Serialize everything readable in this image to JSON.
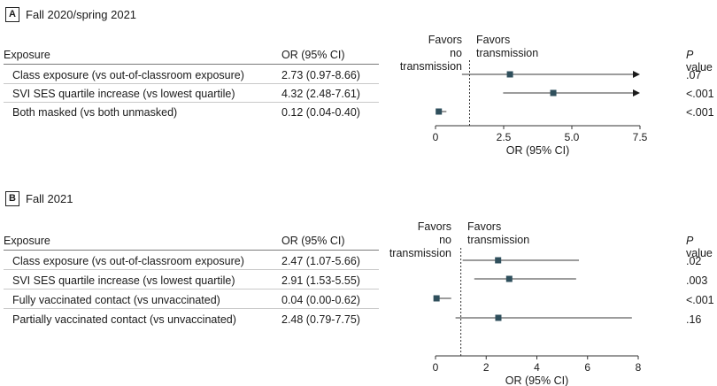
{
  "chart_data": [
    {
      "type": "forest",
      "panel_label": "A",
      "title": "Fall 2020/spring 2021",
      "columns": {
        "exposure": "Exposure",
        "or": "OR (95% CI)",
        "p_prefix": "P",
        "p_suffix": " value"
      },
      "favors_left": [
        "Favors",
        "no transmission"
      ],
      "favors_right": [
        "Favors",
        "transmission"
      ],
      "xlabel": "OR (95% CI)",
      "xlim": [
        0,
        7.5
      ],
      "xticks": [
        0,
        2.5,
        5.0,
        7.5
      ],
      "xtick_labels": [
        "0",
        "2.5",
        "5.0",
        "7.5"
      ],
      "reference_line": 1.25,
      "rows": [
        {
          "exposure": "Class exposure (vs out-of-classroom exposure)",
          "or_text": "2.73 (0.97-8.66)",
          "or": 2.73,
          "lo": 0.97,
          "hi": 8.66,
          "p": ".07",
          "arrow": true
        },
        {
          "exposure": "SVI SES quartile increase (vs lowest quartile)",
          "or_text": "4.32 (2.48-7.61)",
          "or": 4.32,
          "lo": 2.48,
          "hi": 7.61,
          "p": "<.001",
          "arrow": true
        },
        {
          "exposure": "Both masked (vs both unmasked)",
          "or_text": "0.12 (0.04-0.40)",
          "or": 0.12,
          "lo": 0.04,
          "hi": 0.4,
          "p": "<.001",
          "arrow": false
        }
      ]
    },
    {
      "type": "forest",
      "panel_label": "B",
      "title": "Fall 2021",
      "columns": {
        "exposure": "Exposure",
        "or": "OR (95% CI)",
        "p_prefix": "P",
        "p_suffix": " value"
      },
      "favors_left": [
        "Favors",
        "no transmission"
      ],
      "favors_right": [
        "Favors",
        "transmission"
      ],
      "xlabel": "OR (95% CI)",
      "xlim": [
        0,
        8
      ],
      "xticks": [
        0,
        2,
        4,
        6,
        8
      ],
      "xtick_labels": [
        "0",
        "2",
        "4",
        "6",
        "8"
      ],
      "reference_line": 1,
      "rows": [
        {
          "exposure": "Class exposure (vs out-of-classroom exposure)",
          "or_text": "2.47 (1.07-5.66)",
          "or": 2.47,
          "lo": 1.07,
          "hi": 5.66,
          "p": ".02",
          "arrow": false
        },
        {
          "exposure": "SVI SES quartile increase (vs lowest quartile)",
          "or_text": "2.91 (1.53-5.55)",
          "or": 2.91,
          "lo": 1.53,
          "hi": 5.55,
          "p": ".003",
          "arrow": false
        },
        {
          "exposure": "Fully vaccinated contact (vs unvaccinated)",
          "or_text": "0.04 (0.00-0.62)",
          "or": 0.04,
          "lo": 0.0,
          "hi": 0.62,
          "p": "<.001",
          "arrow": false
        },
        {
          "exposure": "Partially vaccinated contact (vs unvaccinated)",
          "or_text": "2.48 (0.79-7.75)",
          "or": 2.48,
          "lo": 0.79,
          "hi": 7.75,
          "p": ".16",
          "arrow": false
        }
      ]
    }
  ],
  "colors": {
    "marker": "#2f4f5c",
    "ci_line": "#3a3a3a",
    "ref_line": "#333333",
    "axis": "#333333"
  }
}
